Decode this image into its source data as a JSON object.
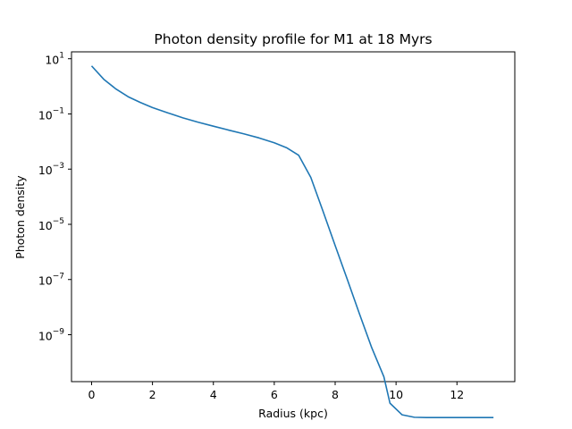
{
  "chart_data": {
    "type": "line",
    "title": "Photon density profile for M1 at 18 Myrs",
    "xlabel": "Radius (kpc)",
    "ylabel": "Photon density",
    "xlim": [
      -0.66,
      13.9
    ],
    "ylim_log10": [
      -10.7,
      1.25
    ],
    "yscale": "log",
    "grid": false,
    "color": "#1f77b4",
    "x_ticks": [
      {
        "value": 0,
        "label": "0"
      },
      {
        "value": 2,
        "label": "2"
      },
      {
        "value": 4,
        "label": "4"
      },
      {
        "value": 6,
        "label": "6"
      },
      {
        "value": 8,
        "label": "8"
      },
      {
        "value": 10,
        "label": "10"
      },
      {
        "value": 12,
        "label": "12"
      }
    ],
    "y_ticks": [
      {
        "exp": 1,
        "base": "10",
        "sup": "1"
      },
      {
        "exp": -1,
        "base": "10",
        "sup": "−1"
      },
      {
        "exp": -3,
        "base": "10",
        "sup": "−3"
      },
      {
        "exp": -5,
        "base": "10",
        "sup": "−5"
      },
      {
        "exp": -7,
        "base": "10",
        "sup": "−7"
      },
      {
        "exp": -9,
        "base": "10",
        "sup": "−9"
      }
    ],
    "series": [
      {
        "x": [
          0.0,
          0.4,
          0.8,
          1.2,
          1.6,
          2.0,
          2.5,
          3.0,
          3.5,
          4.0,
          4.5,
          5.0,
          5.5,
          6.0,
          6.4,
          6.8,
          7.2,
          7.6,
          8.0,
          8.4,
          8.8,
          9.2,
          9.6,
          9.8,
          10.2,
          10.6,
          11.0,
          12.0,
          13.2
        ],
        "y": [
          5.5,
          1.8,
          0.8,
          0.42,
          0.26,
          0.17,
          0.11,
          0.072,
          0.05,
          0.036,
          0.026,
          0.019,
          0.0135,
          0.009,
          0.006,
          0.0032,
          0.0005,
          3e-05,
          1.7e-06,
          1e-07,
          5.6e-09,
          3.4e-10,
          3e-11,
          3.3e-12,
          1.25e-12,
          1.02e-12,
          1e-12,
          1e-12,
          1e-12
        ]
      }
    ]
  }
}
